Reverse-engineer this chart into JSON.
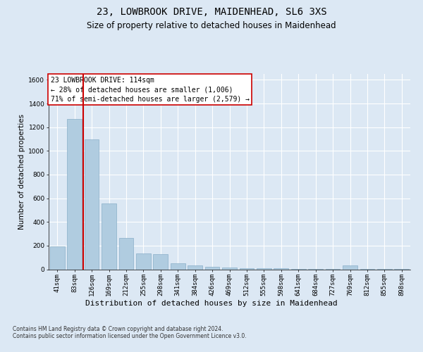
{
  "title": "23, LOWBROOK DRIVE, MAIDENHEAD, SL6 3XS",
  "subtitle": "Size of property relative to detached houses in Maidenhead",
  "xlabel": "Distribution of detached houses by size in Maidenhead",
  "ylabel": "Number of detached properties",
  "categories": [
    "41sqm",
    "83sqm",
    "126sqm",
    "169sqm",
    "212sqm",
    "255sqm",
    "298sqm",
    "341sqm",
    "384sqm",
    "426sqm",
    "469sqm",
    "512sqm",
    "555sqm",
    "598sqm",
    "641sqm",
    "684sqm",
    "727sqm",
    "769sqm",
    "812sqm",
    "855sqm",
    "898sqm"
  ],
  "values": [
    192,
    1270,
    1095,
    555,
    262,
    133,
    128,
    50,
    30,
    20,
    14,
    10,
    10,
    8,
    5,
    5,
    3,
    35,
    2,
    2,
    2
  ],
  "bar_color": "#b0cce0",
  "bar_edge_color": "#8aafc8",
  "vline_pos": 1.5,
  "vline_color": "#cc0000",
  "ylim": [
    0,
    1650
  ],
  "yticks": [
    0,
    200,
    400,
    600,
    800,
    1000,
    1200,
    1400,
    1600
  ],
  "annotation_text": "23 LOWBROOK DRIVE: 114sqm\n← 28% of detached houses are smaller (1,006)\n71% of semi-detached houses are larger (2,579) →",
  "annotation_box_facecolor": "#ffffff",
  "annotation_box_edgecolor": "#cc0000",
  "footer_text": "Contains HM Land Registry data © Crown copyright and database right 2024.\nContains public sector information licensed under the Open Government Licence v3.0.",
  "fig_bg_color": "#dce8f4",
  "plot_bg_color": "#dce8f4",
  "grid_color": "#ffffff",
  "title_fontsize": 10,
  "subtitle_fontsize": 8.5,
  "tick_fontsize": 6.5,
  "ylabel_fontsize": 7.5,
  "xlabel_fontsize": 8,
  "footer_fontsize": 5.5,
  "annotation_fontsize": 7
}
